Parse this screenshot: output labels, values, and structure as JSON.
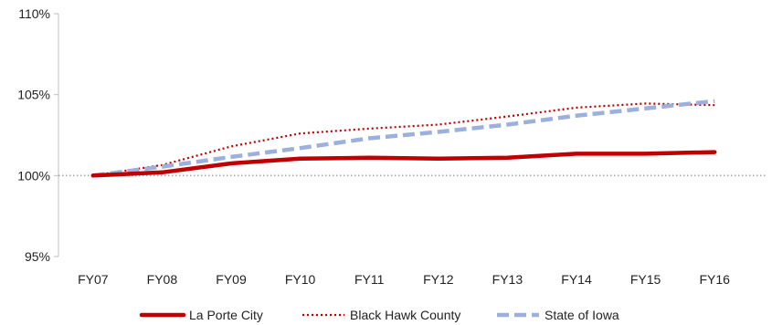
{
  "chart_data": {
    "type": "line",
    "title": "",
    "xlabel": "",
    "ylabel": "",
    "categories": [
      "FY07",
      "FY08",
      "FY09",
      "FY10",
      "FY11",
      "FY12",
      "FY13",
      "FY14",
      "FY15",
      "FY16"
    ],
    "ylim": [
      95,
      110
    ],
    "yticks": [
      95,
      100,
      105,
      110
    ],
    "ytick_labels": [
      "95%",
      "100%",
      "105%",
      "110%"
    ],
    "reference_line": 100,
    "grid": false,
    "legend_position": "bottom",
    "series": [
      {
        "name": "La Porte City",
        "style": "solid",
        "color": "#c00000",
        "values": [
          100.0,
          100.2,
          100.75,
          101.05,
          101.1,
          101.05,
          101.1,
          101.35,
          101.35,
          101.45
        ]
      },
      {
        "name": "Black Hawk County",
        "style": "dotted",
        "color": "#c00000",
        "values": [
          100.0,
          100.65,
          101.8,
          102.6,
          102.9,
          103.15,
          103.65,
          104.2,
          104.45,
          104.35
        ]
      },
      {
        "name": "State of Iowa",
        "style": "dashed",
        "color": "#9bb0dc",
        "values": [
          100.0,
          100.55,
          101.15,
          101.7,
          102.3,
          102.7,
          103.15,
          103.7,
          104.15,
          104.6
        ]
      }
    ]
  }
}
